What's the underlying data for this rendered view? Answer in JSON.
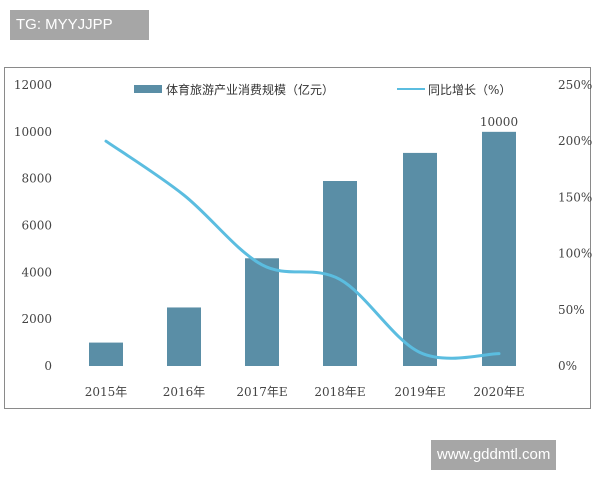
{
  "watermarks": {
    "top_left": "TG: MYYJJPP",
    "bottom_right": "www.gddmtl.com"
  },
  "legend": {
    "bar_label": "体育旅游产业消费规模（亿元）",
    "line_label": "同比增长（%）"
  },
  "colors": {
    "bar": "#5a8ea6",
    "line": "#5bbde0",
    "frame": "#8a8a8a",
    "watermark_bg": "#a6a6a6"
  },
  "chart_data": {
    "type": "bar",
    "title": "",
    "categories": [
      "2015年",
      "2016年",
      "2017年E",
      "2018年E",
      "2019年E",
      "2020年E"
    ],
    "series": [
      {
        "name": "体育旅游产业消费规模（亿元）",
        "type": "bar",
        "axis": "left",
        "values": [
          1000,
          2500,
          4600,
          7900,
          9100,
          10000
        ]
      },
      {
        "name": "同比增长（%）",
        "type": "line",
        "axis": "right",
        "values": [
          200,
          152,
          90,
          77,
          12,
          11
        ]
      }
    ],
    "annotations": [
      {
        "category": "2020年E",
        "text": "10000"
      }
    ],
    "left_axis": {
      "ylim": [
        0,
        12000
      ],
      "ticks": [
        "0",
        "2000",
        "4000",
        "6000",
        "8000",
        "10000",
        "12000"
      ]
    },
    "right_axis": {
      "ylim": [
        0,
        250
      ],
      "ticks": [
        "0%",
        "50%",
        "100%",
        "150%",
        "200%",
        "250%"
      ]
    },
    "xlabel": "",
    "ylabel": "",
    "grid": false,
    "legend_position": "top"
  }
}
